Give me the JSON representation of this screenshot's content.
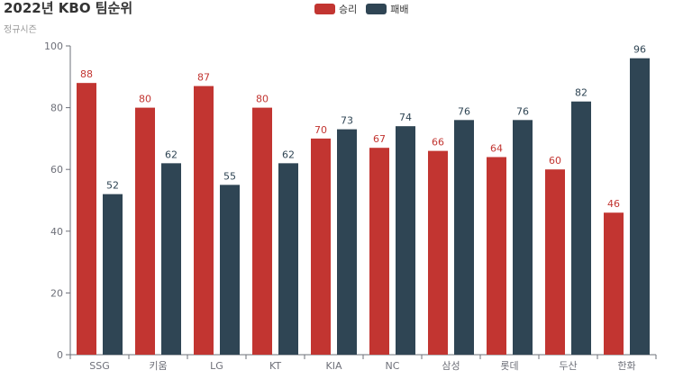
{
  "chart_data": {
    "type": "bar",
    "title": "2022년 KBO 팀순위",
    "subtitle": "정규시즌",
    "categories": [
      "SSG",
      "키움",
      "LG",
      "KT",
      "KIA",
      "NC",
      "삼성",
      "롯데",
      "두산",
      "한화"
    ],
    "series": [
      {
        "name": "승리",
        "color": "#c23531",
        "values": [
          88,
          80,
          87,
          80,
          70,
          67,
          66,
          64,
          60,
          46
        ]
      },
      {
        "name": "패배",
        "color": "#2f4554",
        "values": [
          52,
          62,
          55,
          62,
          73,
          74,
          76,
          76,
          82,
          96
        ]
      }
    ],
    "ylim": [
      0,
      100
    ],
    "yticks": [
      0,
      20,
      40,
      60,
      80,
      100
    ],
    "legend_position": "top-center",
    "grid": false,
    "data_labels": true
  }
}
